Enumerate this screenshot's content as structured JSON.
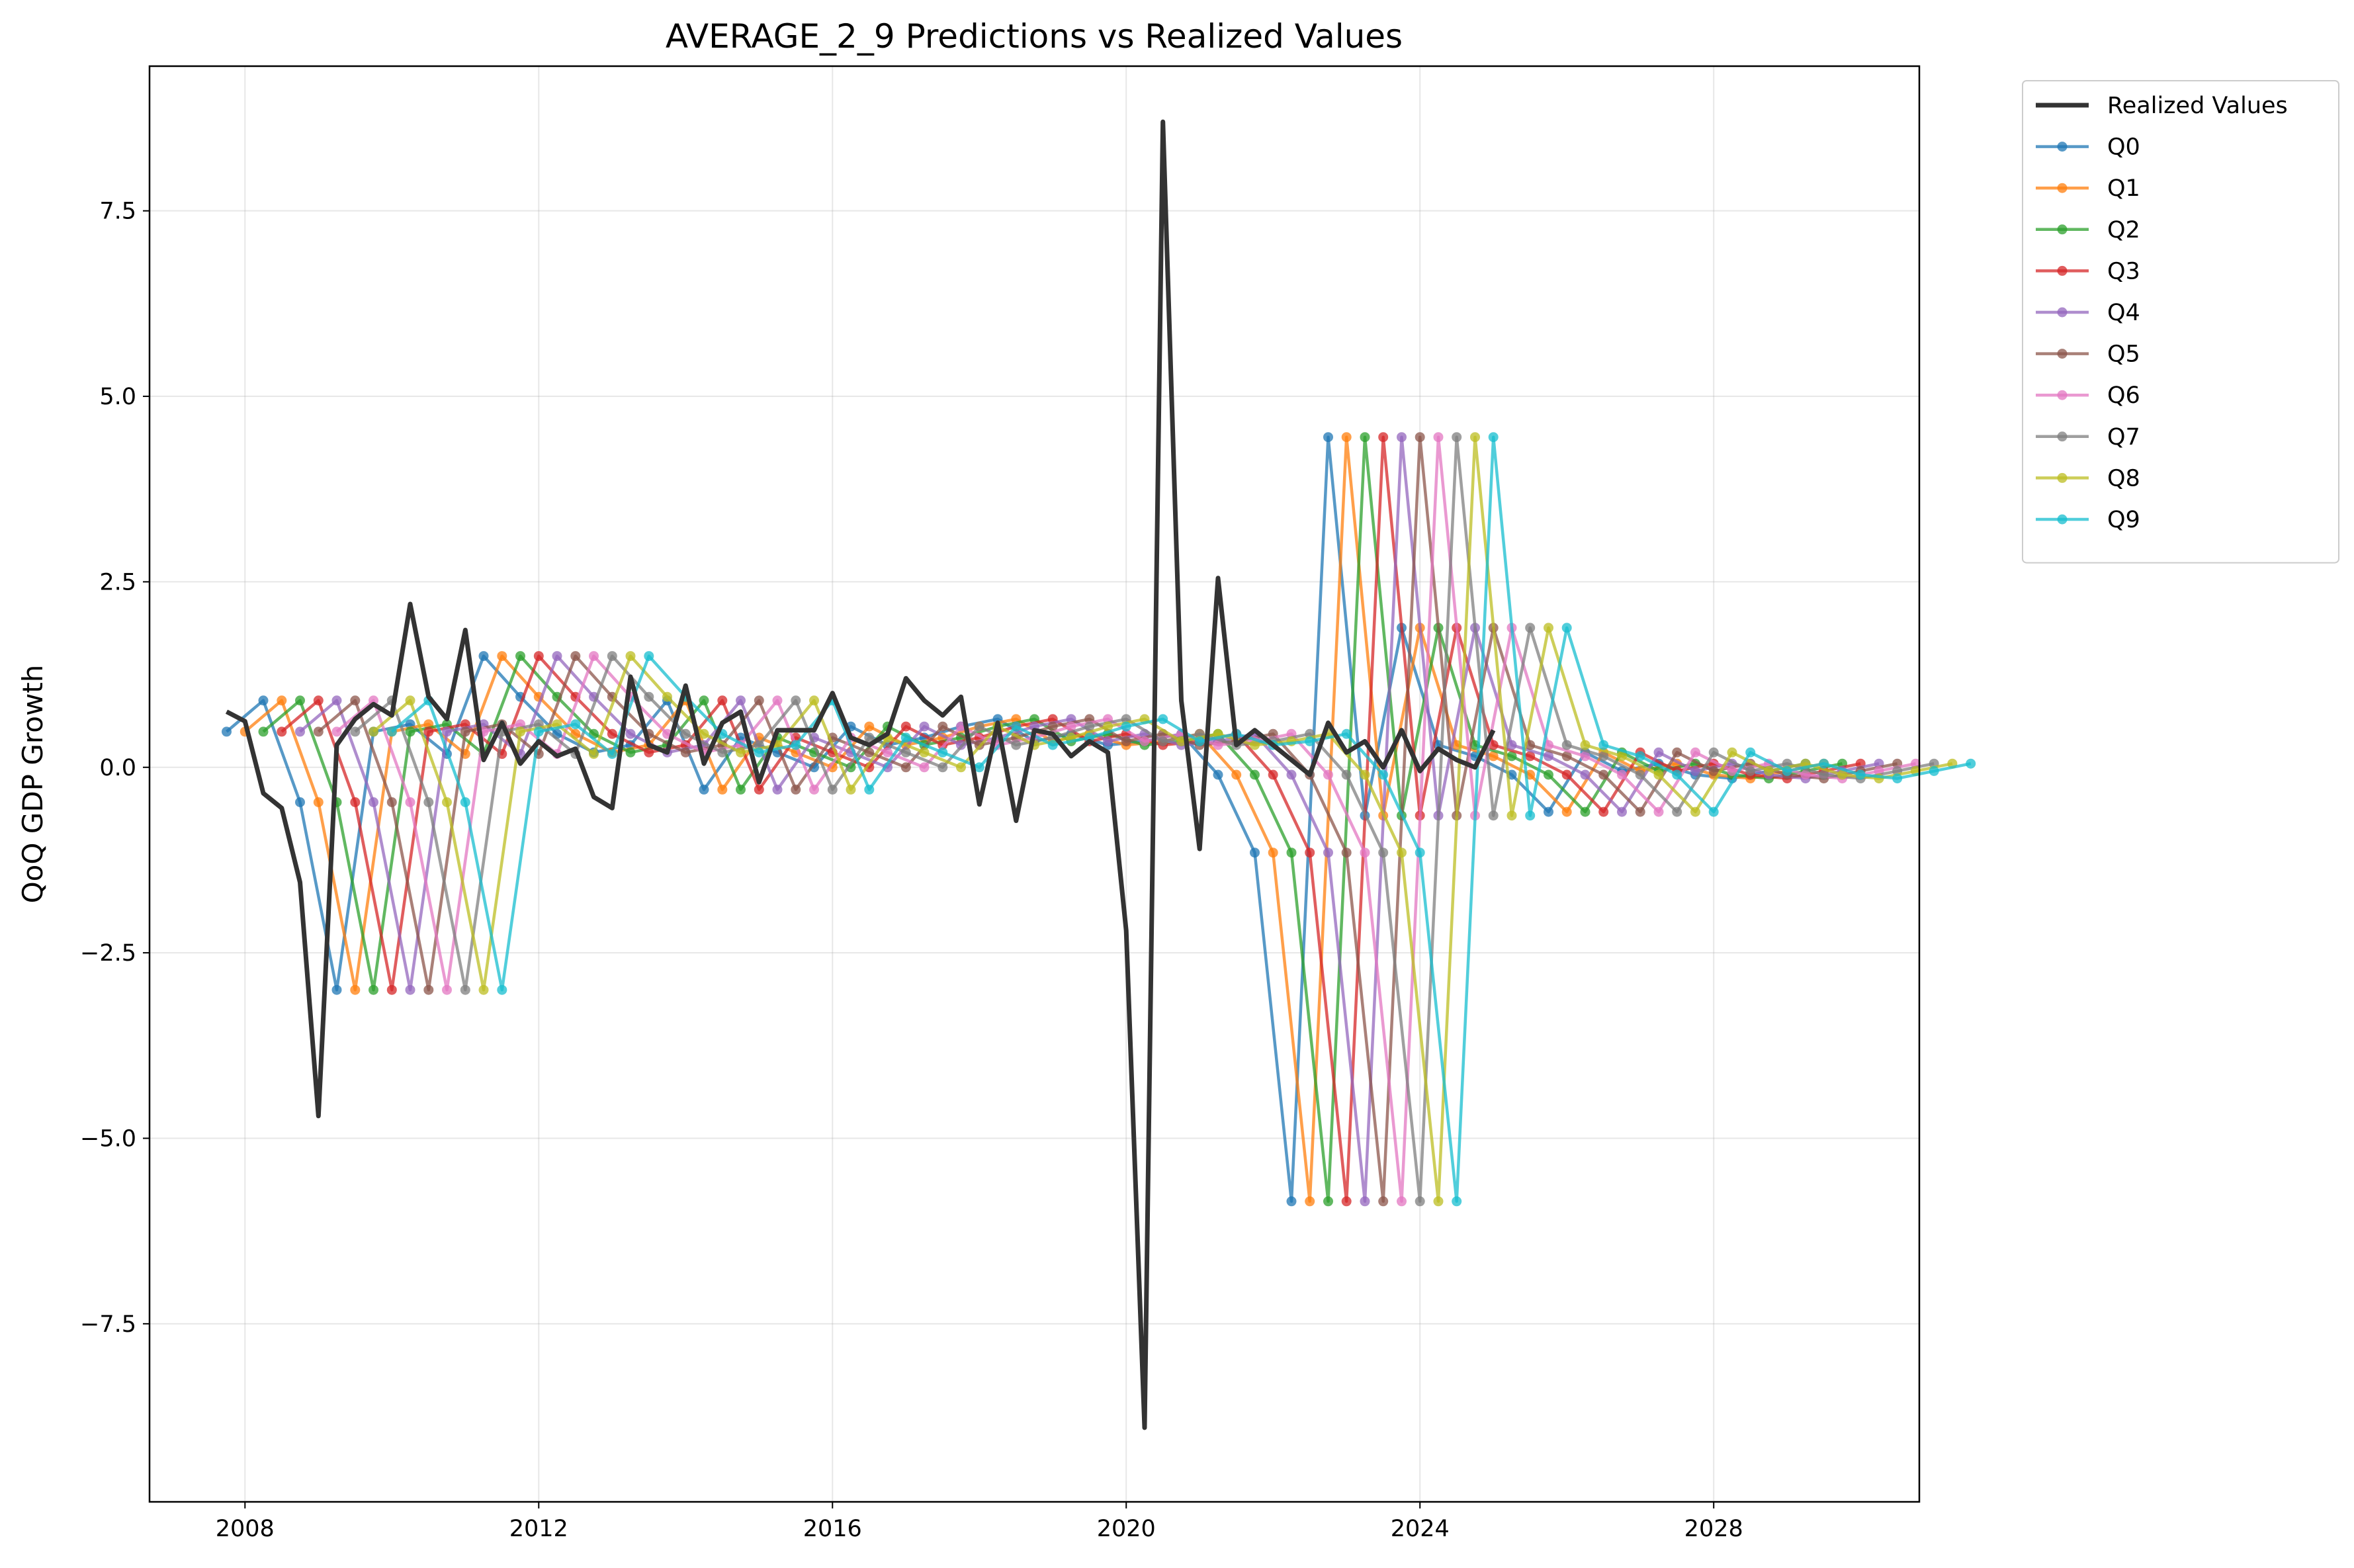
{
  "chart_data": {
    "type": "line",
    "title": "AVERAGE_2_9 Predictions vs Realized Values",
    "xlabel": "",
    "ylabel": "QoQ GDP Growth",
    "xlim": [
      2006.7,
      2030.8
    ],
    "ylim": [
      -9.9,
      9.45
    ],
    "x_ticks": [
      2008,
      2012,
      2016,
      2020,
      2024,
      2028
    ],
    "y_ticks": [
      -7.5,
      -5.0,
      -2.5,
      0.0,
      2.5,
      5.0,
      7.5
    ],
    "y_tick_labels": [
      "−7.5",
      "−5.0",
      "−2.5",
      "0.0",
      "2.5",
      "5.0",
      "7.5"
    ],
    "grid": true,
    "legend_position": "outside-top-right",
    "realized": {
      "name": "Realized Values",
      "color": "#333333",
      "points": [
        [
          2007.75,
          0.75
        ],
        [
          2008.0,
          0.62
        ],
        [
          2008.25,
          -0.35
        ],
        [
          2008.5,
          -0.55
        ],
        [
          2008.75,
          -1.55
        ],
        [
          2009.0,
          -4.7
        ],
        [
          2009.25,
          0.3
        ],
        [
          2009.5,
          0.65
        ],
        [
          2009.75,
          0.85
        ],
        [
          2010.0,
          0.7
        ],
        [
          2010.25,
          2.2
        ],
        [
          2010.5,
          0.95
        ],
        [
          2010.75,
          0.65
        ],
        [
          2011.0,
          1.85
        ],
        [
          2011.25,
          0.1
        ],
        [
          2011.5,
          0.6
        ],
        [
          2011.75,
          0.05
        ],
        [
          2012.0,
          0.35
        ],
        [
          2012.25,
          0.15
        ],
        [
          2012.5,
          0.25
        ],
        [
          2012.75,
          -0.4
        ],
        [
          2013.0,
          -0.55
        ],
        [
          2013.25,
          1.22
        ],
        [
          2013.5,
          0.3
        ],
        [
          2013.75,
          0.2
        ],
        [
          2014.0,
          1.1
        ],
        [
          2014.25,
          0.05
        ],
        [
          2014.5,
          0.6
        ],
        [
          2014.75,
          0.75
        ],
        [
          2015.0,
          -0.2
        ],
        [
          2015.25,
          0.5
        ],
        [
          2015.5,
          0.5
        ],
        [
          2015.75,
          0.5
        ],
        [
          2016.0,
          1.0
        ],
        [
          2016.25,
          0.4
        ],
        [
          2016.5,
          0.3
        ],
        [
          2016.75,
          0.45
        ],
        [
          2017.0,
          1.2
        ],
        [
          2017.25,
          0.9
        ],
        [
          2017.5,
          0.7
        ],
        [
          2017.75,
          0.95
        ],
        [
          2018.0,
          -0.5
        ],
        [
          2018.25,
          0.6
        ],
        [
          2018.5,
          -0.72
        ],
        [
          2018.75,
          0.5
        ],
        [
          2019.0,
          0.45
        ],
        [
          2019.25,
          0.15
        ],
        [
          2019.5,
          0.35
        ],
        [
          2019.75,
          0.2
        ],
        [
          2020.0,
          -2.2
        ],
        [
          2020.25,
          -8.9
        ],
        [
          2020.5,
          8.7
        ],
        [
          2020.75,
          0.9
        ],
        [
          2021.0,
          -1.1
        ],
        [
          2021.25,
          2.55
        ],
        [
          2021.5,
          0.3
        ],
        [
          2021.75,
          0.5
        ],
        [
          2022.0,
          0.3
        ],
        [
          2022.25,
          0.1
        ],
        [
          2022.5,
          -0.1
        ],
        [
          2022.75,
          0.6
        ],
        [
          2023.0,
          0.2
        ],
        [
          2023.25,
          0.35
        ],
        [
          2023.5,
          0.0
        ],
        [
          2023.75,
          0.5
        ],
        [
          2024.0,
          -0.05
        ],
        [
          2024.25,
          0.25
        ],
        [
          2024.5,
          0.1
        ],
        [
          2024.75,
          0.0
        ],
        [
          2025.0,
          0.5
        ]
      ]
    },
    "series": [
      {
        "name": "Q0",
        "color": "#1f77b4"
      },
      {
        "name": "Q1",
        "color": "#ff7f0e"
      },
      {
        "name": "Q2",
        "color": "#2ca02c"
      },
      {
        "name": "Q3",
        "color": "#d62728"
      },
      {
        "name": "Q4",
        "color": "#9467bd"
      },
      {
        "name": "Q5",
        "color": "#8c564b"
      },
      {
        "name": "Q6",
        "color": "#e377c2"
      },
      {
        "name": "Q7",
        "color": "#7f7f7f"
      },
      {
        "name": "Q8",
        "color": "#bcbd22"
      },
      {
        "name": "Q9",
        "color": "#17becf"
      }
    ],
    "forecast_step_years": 0.5,
    "forecast_pattern": {
      "start_x": 2007.75,
      "values": [
        0.48,
        0.9,
        -0.47,
        -3.0,
        0.48,
        0.58,
        0.18,
        1.5,
        0.95,
        0.45,
        0.2,
        0.3,
        0.9,
        -0.3,
        0.4,
        0.2,
        0.0,
        0.55,
        0.3,
        0.4,
        0.55,
        0.65,
        0.35,
        0.45,
        0.3,
        0.35,
        0.45,
        -0.1,
        -1.15,
        -5.85,
        4.45,
        -0.65,
        1.88,
        0.3,
        0.15,
        -0.1,
        -0.6,
        0.2,
        -0.05,
        0.05,
        -0.1,
        -0.15,
        -0.05,
        0.05
      ]
    }
  }
}
